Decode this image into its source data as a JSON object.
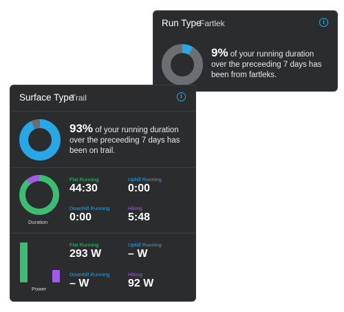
{
  "run_card": {
    "title": "Run Type",
    "subtitle": "Fartlek",
    "percent": "9%",
    "percent_value": 9,
    "description_l1": "of your running duration",
    "description_l2": "over the preceeding 7 days has",
    "description_l3": "been from fartleks."
  },
  "surface_card": {
    "title": "Surface Type",
    "subtitle": "Trail",
    "percent": "93%",
    "percent_value": 93,
    "description_l1": "of your running duration",
    "description_l2": "over the preceeding 7 days has",
    "description_l3": "been on trail."
  },
  "duration": {
    "caption": "Duration",
    "stats": [
      {
        "label": "Flat Running",
        "value": "44:30"
      },
      {
        "label": "Uphill Running",
        "value": "0:00"
      },
      {
        "label": "Downhill Running",
        "value": "0:00"
      },
      {
        "label": "Hiking",
        "value": "5:48"
      }
    ],
    "hiking_share": 11
  },
  "power": {
    "caption": "Power",
    "stats": [
      {
        "label": "Flat Running",
        "value": "293 W"
      },
      {
        "label": "Uphill Running",
        "value": "– W"
      },
      {
        "label": "Downhill Running",
        "value": "– W"
      },
      {
        "label": "Hiking",
        "value": "92 W"
      }
    ],
    "bars": [
      {
        "name": "flat",
        "value": 293
      },
      {
        "name": "hiking",
        "value": 92
      }
    ]
  },
  "colors": {
    "card_bg": "#2b2c2e",
    "blue": "#27a7e6",
    "gray_ring": "#6d6e71",
    "green": "#3dbd72",
    "purple": "#a05ce8",
    "flat_label": "#3dbd72",
    "uphill_label": "#27a7e6",
    "downhill_label": "#27a7e6",
    "hiking_label": "#a05ce8"
  },
  "icons": {
    "info": "info-circle-icon"
  }
}
